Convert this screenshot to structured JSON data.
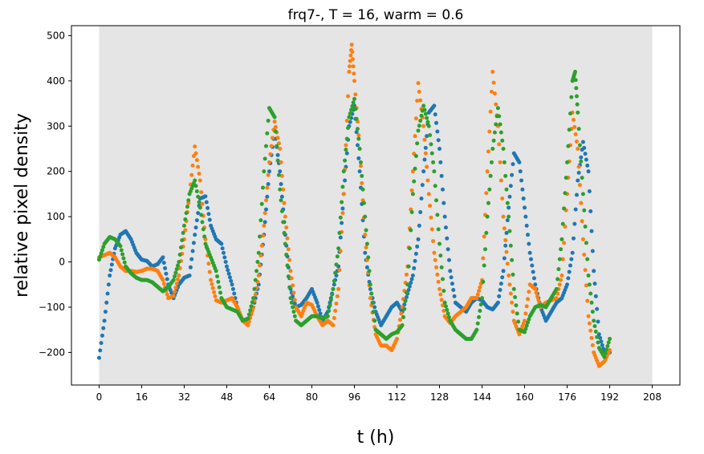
{
  "chart_data": {
    "type": "scatter",
    "title": "frq7-, T = 16, warm = 0.6",
    "xlabel": "t (h)",
    "ylabel": "relative pixel density",
    "xlim": [
      -10.4,
      218.4
    ],
    "ylim": [
      -272,
      522
    ],
    "xticks": [
      0,
      16,
      32,
      48,
      64,
      80,
      96,
      112,
      128,
      144,
      160,
      176,
      192,
      208
    ],
    "yticks": [
      -200,
      -100,
      0,
      100,
      200,
      300,
      400,
      500
    ],
    "shaded_region": [
      0,
      208
    ],
    "grid": false,
    "colors": {
      "shade": "#e5e5e5",
      "series1": "#1f77b4",
      "series2": "#ff7f0e",
      "series3": "#2ca02c"
    },
    "series": [
      {
        "color": "#1f77b4",
        "points": [
          [
            0,
            -212
          ],
          [
            2,
            -130
          ],
          [
            4,
            -30
          ],
          [
            6,
            30
          ],
          [
            8,
            60
          ],
          [
            10,
            68
          ],
          [
            12,
            50
          ],
          [
            14,
            20
          ],
          [
            16,
            5
          ],
          [
            18,
            2
          ],
          [
            20,
            -10
          ],
          [
            22,
            -5
          ],
          [
            24,
            10
          ],
          [
            26,
            -50
          ],
          [
            28,
            -80
          ],
          [
            30,
            -50
          ],
          [
            32,
            -35
          ],
          [
            34,
            -30
          ],
          [
            36,
            60
          ],
          [
            38,
            140
          ],
          [
            40,
            145
          ],
          [
            42,
            80
          ],
          [
            44,
            50
          ],
          [
            46,
            40
          ],
          [
            48,
            -10
          ],
          [
            50,
            -50
          ],
          [
            52,
            -100
          ],
          [
            54,
            -130
          ],
          [
            56,
            -130
          ],
          [
            58,
            -100
          ],
          [
            60,
            -50
          ],
          [
            62,
            60
          ],
          [
            64,
            200
          ],
          [
            66,
            290
          ],
          [
            68,
            200
          ],
          [
            70,
            60
          ],
          [
            72,
            -60
          ],
          [
            74,
            -100
          ],
          [
            76,
            -95
          ],
          [
            78,
            -80
          ],
          [
            80,
            -60
          ],
          [
            82,
            -90
          ],
          [
            84,
            -130
          ],
          [
            86,
            -110
          ],
          [
            88,
            -60
          ],
          [
            90,
            -10
          ],
          [
            92,
            150
          ],
          [
            94,
            300
          ],
          [
            96,
            345
          ],
          [
            98,
            200
          ],
          [
            100,
            20
          ],
          [
            102,
            -60
          ],
          [
            104,
            -110
          ],
          [
            106,
            -140
          ],
          [
            108,
            -120
          ],
          [
            110,
            -100
          ],
          [
            112,
            -90
          ],
          [
            114,
            -110
          ],
          [
            116,
            -70
          ],
          [
            118,
            -30
          ],
          [
            120,
            50
          ],
          [
            122,
            200
          ],
          [
            124,
            330
          ],
          [
            126,
            345
          ],
          [
            128,
            250
          ],
          [
            130,
            100
          ],
          [
            132,
            -20
          ],
          [
            134,
            -90
          ],
          [
            136,
            -100
          ],
          [
            138,
            -110
          ],
          [
            140,
            -90
          ],
          [
            142,
            -80
          ],
          [
            144,
            -85
          ],
          [
            146,
            -100
          ],
          [
            148,
            -105
          ],
          [
            150,
            -90
          ],
          [
            152,
            -20
          ],
          [
            154,
            120
          ],
          [
            156,
            240
          ],
          [
            158,
            220
          ],
          [
            160,
            120
          ],
          [
            162,
            20
          ],
          [
            164,
            -50
          ],
          [
            166,
            -100
          ],
          [
            168,
            -130
          ],
          [
            170,
            -110
          ],
          [
            172,
            -90
          ],
          [
            174,
            -80
          ],
          [
            176,
            -50
          ],
          [
            178,
            20
          ],
          [
            180,
            180
          ],
          [
            182,
            265
          ],
          [
            184,
            200
          ],
          [
            186,
            -20
          ],
          [
            188,
            -160
          ],
          [
            190,
            -200
          ],
          [
            192,
            -200
          ]
        ]
      },
      {
        "color": "#ff7f0e",
        "points": [
          [
            0,
            10
          ],
          [
            2,
            15
          ],
          [
            4,
            20
          ],
          [
            6,
            10
          ],
          [
            8,
            -10
          ],
          [
            10,
            -20
          ],
          [
            12,
            -20
          ],
          [
            14,
            -22
          ],
          [
            16,
            -20
          ],
          [
            18,
            -15
          ],
          [
            20,
            -15
          ],
          [
            22,
            -20
          ],
          [
            24,
            -40
          ],
          [
            26,
            -80
          ],
          [
            28,
            -75
          ],
          [
            30,
            -30
          ],
          [
            32,
            50
          ],
          [
            34,
            150
          ],
          [
            36,
            255
          ],
          [
            38,
            180
          ],
          [
            40,
            50
          ],
          [
            42,
            -40
          ],
          [
            44,
            -85
          ],
          [
            46,
            -90
          ],
          [
            48,
            -85
          ],
          [
            50,
            -80
          ],
          [
            52,
            -100
          ],
          [
            54,
            -130
          ],
          [
            56,
            -140
          ],
          [
            58,
            -100
          ],
          [
            60,
            -30
          ],
          [
            62,
            80
          ],
          [
            64,
            220
          ],
          [
            66,
            310
          ],
          [
            68,
            250
          ],
          [
            70,
            100
          ],
          [
            72,
            -20
          ],
          [
            74,
            -100
          ],
          [
            76,
            -120
          ],
          [
            78,
            -90
          ],
          [
            80,
            -95
          ],
          [
            82,
            -120
          ],
          [
            84,
            -140
          ],
          [
            86,
            -130
          ],
          [
            88,
            -140
          ],
          [
            90,
            -60
          ],
          [
            92,
            150
          ],
          [
            94,
            420
          ],
          [
            95,
            480
          ],
          [
            96,
            400
          ],
          [
            98,
            250
          ],
          [
            100,
            60
          ],
          [
            102,
            -80
          ],
          [
            104,
            -160
          ],
          [
            106,
            -185
          ],
          [
            108,
            -185
          ],
          [
            110,
            -195
          ],
          [
            112,
            -170
          ],
          [
            114,
            -100
          ],
          [
            116,
            -10
          ],
          [
            118,
            200
          ],
          [
            120,
            395
          ],
          [
            122,
            300
          ],
          [
            124,
            150
          ],
          [
            126,
            20
          ],
          [
            128,
            -60
          ],
          [
            130,
            -120
          ],
          [
            132,
            -135
          ],
          [
            134,
            -120
          ],
          [
            136,
            -110
          ],
          [
            138,
            -100
          ],
          [
            140,
            -80
          ],
          [
            142,
            -80
          ],
          [
            144,
            -40
          ],
          [
            146,
            200
          ],
          [
            148,
            420
          ],
          [
            150,
            300
          ],
          [
            152,
            100
          ],
          [
            154,
            -30
          ],
          [
            156,
            -130
          ],
          [
            158,
            -160
          ],
          [
            160,
            -130
          ],
          [
            162,
            -50
          ],
          [
            164,
            -60
          ],
          [
            166,
            -100
          ],
          [
            168,
            -90
          ],
          [
            170,
            -85
          ],
          [
            172,
            -80
          ],
          [
            174,
            -30
          ],
          [
            176,
            150
          ],
          [
            178,
            330
          ],
          [
            180,
            250
          ],
          [
            182,
            50
          ],
          [
            184,
            -120
          ],
          [
            186,
            -200
          ],
          [
            188,
            -230
          ],
          [
            190,
            -220
          ],
          [
            192,
            -195
          ]
        ]
      },
      {
        "color": "#2ca02c",
        "points": [
          [
            0,
            5
          ],
          [
            2,
            40
          ],
          [
            4,
            55
          ],
          [
            6,
            50
          ],
          [
            8,
            35
          ],
          [
            10,
            -10
          ],
          [
            12,
            -25
          ],
          [
            14,
            -35
          ],
          [
            16,
            -40
          ],
          [
            18,
            -40
          ],
          [
            20,
            -45
          ],
          [
            22,
            -55
          ],
          [
            24,
            -65
          ],
          [
            26,
            -55
          ],
          [
            28,
            -40
          ],
          [
            30,
            0
          ],
          [
            32,
            80
          ],
          [
            34,
            150
          ],
          [
            36,
            180
          ],
          [
            38,
            120
          ],
          [
            40,
            40
          ],
          [
            42,
            10
          ],
          [
            44,
            -20
          ],
          [
            46,
            -80
          ],
          [
            48,
            -100
          ],
          [
            50,
            -105
          ],
          [
            52,
            -110
          ],
          [
            54,
            -130
          ],
          [
            56,
            -125
          ],
          [
            58,
            -80
          ],
          [
            60,
            20
          ],
          [
            62,
            200
          ],
          [
            64,
            340
          ],
          [
            66,
            320
          ],
          [
            68,
            160
          ],
          [
            70,
            40
          ],
          [
            72,
            -80
          ],
          [
            74,
            -130
          ],
          [
            76,
            -140
          ],
          [
            78,
            -130
          ],
          [
            80,
            -120
          ],
          [
            82,
            -120
          ],
          [
            84,
            -125
          ],
          [
            86,
            -120
          ],
          [
            88,
            -60
          ],
          [
            90,
            30
          ],
          [
            92,
            200
          ],
          [
            94,
            320
          ],
          [
            96,
            360
          ],
          [
            98,
            250
          ],
          [
            100,
            100
          ],
          [
            102,
            -50
          ],
          [
            104,
            -150
          ],
          [
            106,
            -160
          ],
          [
            108,
            -170
          ],
          [
            110,
            -160
          ],
          [
            112,
            -155
          ],
          [
            114,
            -140
          ],
          [
            116,
            -50
          ],
          [
            118,
            150
          ],
          [
            120,
            290
          ],
          [
            122,
            345
          ],
          [
            124,
            300
          ],
          [
            126,
            200
          ],
          [
            128,
            40
          ],
          [
            130,
            -90
          ],
          [
            132,
            -130
          ],
          [
            134,
            -150
          ],
          [
            136,
            -160
          ],
          [
            138,
            -170
          ],
          [
            140,
            -170
          ],
          [
            142,
            -150
          ],
          [
            144,
            -80
          ],
          [
            146,
            100
          ],
          [
            148,
            250
          ],
          [
            150,
            340
          ],
          [
            152,
            250
          ],
          [
            154,
            100
          ],
          [
            156,
            -60
          ],
          [
            158,
            -150
          ],
          [
            160,
            -155
          ],
          [
            162,
            -120
          ],
          [
            164,
            -100
          ],
          [
            166,
            -95
          ],
          [
            168,
            -100
          ],
          [
            170,
            -80
          ],
          [
            172,
            -60
          ],
          [
            174,
            50
          ],
          [
            176,
            220
          ],
          [
            178,
            400
          ],
          [
            179,
            420
          ],
          [
            180,
            330
          ],
          [
            182,
            150
          ],
          [
            184,
            -30
          ],
          [
            186,
            -130
          ],
          [
            188,
            -190
          ],
          [
            190,
            -210
          ],
          [
            192,
            -170
          ]
        ]
      }
    ]
  }
}
